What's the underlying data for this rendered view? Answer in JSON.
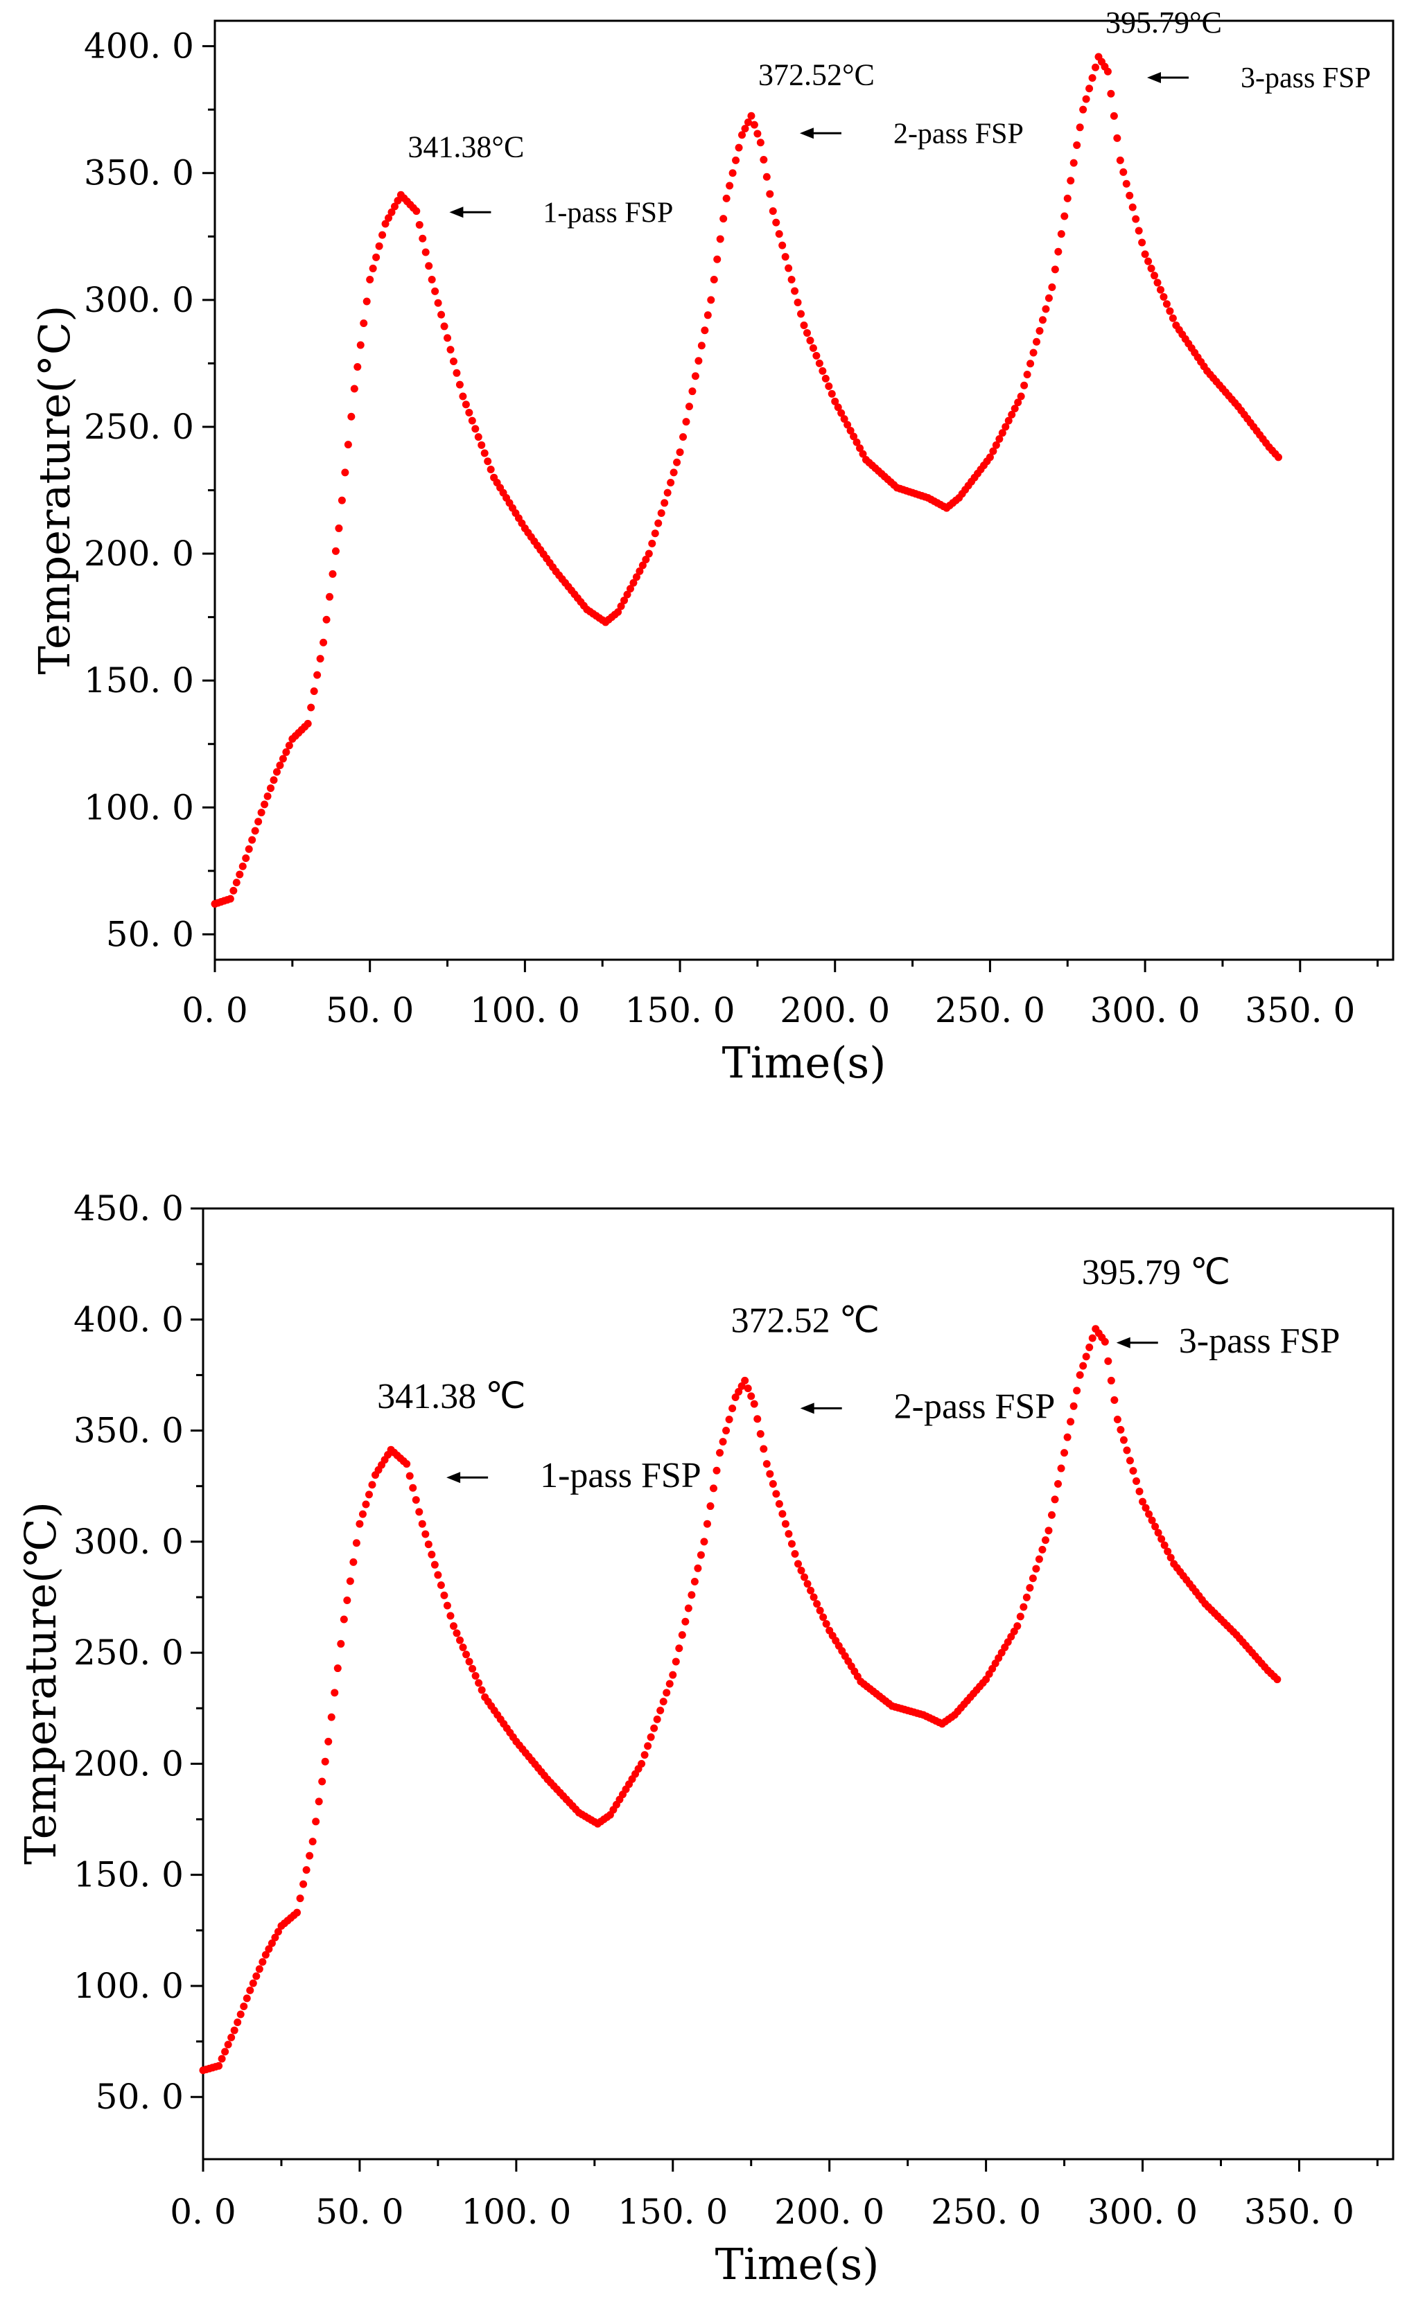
{
  "chart_data": [
    {
      "type": "scatter",
      "title": "",
      "xlabel": "Time(s)",
      "ylabel": "Temperature(°C)",
      "xlim": [
        0,
        380
      ],
      "ylim": [
        40,
        410
      ],
      "xticks": [
        "0. 0",
        "50. 0",
        "100. 0",
        "150. 0",
        "200. 0",
        "250. 0",
        "300. 0",
        "350. 0"
      ],
      "yticks": [
        "50. 0",
        "100. 0",
        "150. 0",
        "200. 0",
        "250. 0",
        "300. 0",
        "350. 0",
        "400. 0"
      ],
      "series_color": "#ff0000",
      "keypoints": {
        "t": [
          0,
          5,
          10,
          15,
          20,
          25,
          30,
          35,
          40,
          45,
          50,
          55,
          60,
          65,
          70,
          75,
          80,
          90,
          100,
          110,
          120,
          126,
          130,
          140,
          150,
          160,
          165,
          170,
          173,
          176,
          180,
          190,
          200,
          210,
          220,
          230,
          236,
          240,
          250,
          260,
          270,
          275,
          280,
          285,
          288,
          292,
          300,
          310,
          320,
          330,
          340,
          343
        ],
        "T": [
          62,
          64,
          80,
          98,
          114,
          127,
          133,
          165,
          210,
          265,
          308,
          330,
          341.38,
          335,
          308,
          285,
          262,
          230,
          210,
          193,
          178,
          173,
          177,
          200,
          240,
          300,
          340,
          365,
          372.52,
          362,
          335,
          290,
          260,
          237,
          226,
          222,
          218,
          222,
          238,
          262,
          305,
          340,
          375,
          395.79,
          390,
          355,
          318,
          290,
          272,
          258,
          242,
          238
        ]
      },
      "annotations": [
        {
          "label": "341.38°C",
          "arrow_text": "1-pass FSP",
          "t": 60,
          "T": 341.38
        },
        {
          "label": "372.52°C",
          "arrow_text": "2-pass FSP",
          "t": 173,
          "T": 372.52
        },
        {
          "label": "395.79°C",
          "arrow_text": "3-pass FSP",
          "t": 285,
          "T": 395.79
        }
      ]
    },
    {
      "type": "scatter",
      "title": "",
      "xlabel": "Time(s)",
      "ylabel": "Temperature(℃)",
      "xlim": [
        0,
        380
      ],
      "ylim": [
        22,
        450
      ],
      "xticks": [
        "0. 0",
        "50. 0",
        "100. 0",
        "150. 0",
        "200. 0",
        "250. 0",
        "300. 0",
        "350. 0"
      ],
      "yticks": [
        "50. 0",
        "100. 0",
        "150. 0",
        "200. 0",
        "250. 0",
        "300. 0",
        "350. 0",
        "400. 0",
        "450. 0"
      ],
      "series_color": "#ff0000",
      "keypoints": {
        "t": [
          0,
          5,
          10,
          15,
          20,
          25,
          30,
          35,
          40,
          45,
          50,
          55,
          60,
          65,
          70,
          75,
          80,
          90,
          100,
          110,
          120,
          126,
          130,
          140,
          150,
          160,
          165,
          170,
          173,
          176,
          180,
          190,
          200,
          210,
          220,
          230,
          236,
          240,
          250,
          260,
          270,
          275,
          280,
          285,
          288,
          292,
          300,
          310,
          320,
          330,
          340,
          343
        ],
        "T": [
          62,
          64,
          80,
          98,
          114,
          127,
          133,
          165,
          210,
          265,
          308,
          330,
          341.38,
          335,
          308,
          285,
          262,
          230,
          210,
          193,
          178,
          173,
          177,
          200,
          240,
          300,
          340,
          365,
          372.52,
          362,
          335,
          290,
          260,
          237,
          226,
          222,
          218,
          222,
          238,
          262,
          305,
          340,
          375,
          395.79,
          390,
          355,
          318,
          290,
          272,
          258,
          242,
          238
        ]
      },
      "annotations": [
        {
          "label": "341.38 ℃",
          "arrow_text": "1-pass FSP",
          "t": 60,
          "T": 341.38
        },
        {
          "label": "372.52 ℃",
          "arrow_text": "2-pass FSP",
          "t": 173,
          "T": 372.52
        },
        {
          "label": "395.79 ℃",
          "arrow_text": "3-pass FSP",
          "t": 285,
          "T": 395.79
        }
      ]
    }
  ]
}
